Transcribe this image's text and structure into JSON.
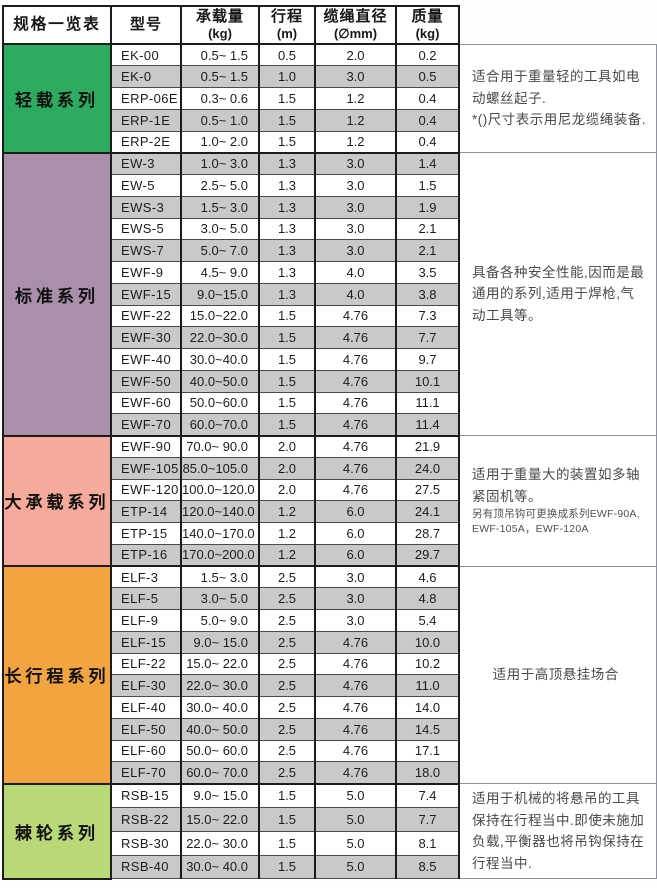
{
  "table": {
    "title": "规格一览表",
    "columns": [
      {
        "label": "型号",
        "sub": ""
      },
      {
        "label": "承载量",
        "sub": "(kg)"
      },
      {
        "label": "行程",
        "sub": "(m)"
      },
      {
        "label": "缆绳直径",
        "sub": "(∅mm)"
      },
      {
        "label": "质量",
        "sub": "(kg)"
      }
    ]
  },
  "stripe_color": "#c9c9c9",
  "groups": [
    {
      "series": "轻载系列",
      "color": "#2dab60",
      "note": {
        "main": "适合用于重量轻的工具如电动螺丝起子.",
        "extra": "*()尺寸表示用尼龙缆绳装备.",
        "align": "left"
      },
      "rows": [
        [
          "EK-00",
          "0.5~ 1.5",
          "0.5",
          "2.0",
          "0.2"
        ],
        [
          "EK-0",
          "0.5~ 1.5",
          "1.0",
          "3.0",
          "0.5"
        ],
        [
          "ERP-06E",
          "0.3~ 0.6",
          "1.5",
          "1.2",
          "0.4"
        ],
        [
          "ERP-1E",
          "0.5~ 1.0",
          "1.5",
          "1.2",
          "0.4"
        ],
        [
          "ERP-2E",
          "1.0~ 2.0",
          "1.5",
          "1.2",
          "0.4"
        ]
      ]
    },
    {
      "series": "标准系列",
      "color": "#aa8fab",
      "note": {
        "main": "具备各种安全性能,因而是最通用的系列,适用于焊枪,气动工具等。",
        "align": "left"
      },
      "rows": [
        [
          "EW-3",
          "1.0~ 3.0",
          "1.3",
          "3.0",
          "1.4"
        ],
        [
          "EW-5",
          "2.5~ 5.0",
          "1.3",
          "3.0",
          "1.5"
        ],
        [
          "EWS-3",
          "1.5~ 3.0",
          "1.3",
          "3.0",
          "1.9"
        ],
        [
          "EWS-5",
          "3.0~ 5.0",
          "1.3",
          "3.0",
          "2.1"
        ],
        [
          "EWS-7",
          "5.0~ 7.0",
          "1.3",
          "3.0",
          "2.1"
        ],
        [
          "EWF-9",
          "4.5~ 9.0",
          "1.3",
          "4.0",
          "3.5"
        ],
        [
          "EWF-15",
          "9.0~15.0",
          "1.3",
          "4.0",
          "3.8"
        ],
        [
          "EWF-22",
          "15.0~22.0",
          "1.5",
          "4.76",
          "7.3"
        ],
        [
          "EWF-30",
          "22.0~30.0",
          "1.5",
          "4.76",
          "7.7"
        ],
        [
          "EWF-40",
          "30.0~40.0",
          "1.5",
          "4.76",
          "9.7"
        ],
        [
          "EWF-50",
          "40.0~50.0",
          "1.5",
          "4.76",
          "10.1"
        ],
        [
          "EWF-60",
          "50.0~60.0",
          "1.5",
          "4.76",
          "11.1"
        ],
        [
          "EWF-70",
          "60.0~70.0",
          "1.5",
          "4.76",
          "11.4"
        ]
      ]
    },
    {
      "series": "大承载系列",
      "color": "#f5aa9b",
      "note": {
        "main": "适用于重量大的装置如多轴紧固机等。",
        "small": "另有顶吊钩可更换成系列EWF-90A, EWF-105A，EWF-120A",
        "align": "left"
      },
      "rows": [
        [
          "EWF-90",
          "70.0~ 90.0",
          "2.0",
          "4.76",
          "21.9"
        ],
        [
          "EWF-105",
          "85.0~105.0",
          "2.0",
          "4.76",
          "24.0"
        ],
        [
          "EWF-120",
          "100.0~120.0",
          "2.0",
          "4.76",
          "27.5"
        ],
        [
          "ETP-14",
          "120.0~140.0",
          "1.2",
          "6.0",
          "24.1"
        ],
        [
          "ETP-15",
          "140.0~170.0",
          "1.2",
          "6.0",
          "28.7"
        ],
        [
          "ETP-16",
          "170.0~200.0",
          "1.2",
          "6.0",
          "29.7"
        ]
      ]
    },
    {
      "series": "长行程系列",
      "color": "#f1a43f",
      "note": {
        "main": "适用于高顶悬挂场合",
        "align": "center"
      },
      "rows": [
        [
          "ELF-3",
          "1.5~ 3.0",
          "2.5",
          "3.0",
          "4.6"
        ],
        [
          "ELF-5",
          "3.0~ 5.0",
          "2.5",
          "3.0",
          "4.8"
        ],
        [
          "ELF-9",
          "5.0~ 9.0",
          "2.5",
          "3.0",
          "5.4"
        ],
        [
          "ELF-15",
          "9.0~ 15.0",
          "2.5",
          "4.76",
          "10.0"
        ],
        [
          "ELF-22",
          "15.0~ 22.0",
          "2.5",
          "4.76",
          "10.2"
        ],
        [
          "ELF-30",
          "22.0~ 30.0",
          "2.5",
          "4.76",
          "11.0"
        ],
        [
          "ELF-40",
          "30.0~ 40.0",
          "2.5",
          "4.76",
          "14.0"
        ],
        [
          "ELF-50",
          "40.0~ 50.0",
          "2.5",
          "4.76",
          "14.5"
        ],
        [
          "ELF-60",
          "50.0~ 60.0",
          "2.5",
          "4.76",
          "17.1"
        ],
        [
          "ELF-70",
          "60.0~ 70.0",
          "2.5",
          "4.76",
          "18.0"
        ]
      ]
    },
    {
      "series": "棘轮系列",
      "color": "#b9d877",
      "note": {
        "main": "适用于机械的将悬吊的工具保持在行程当中.即使未施加负载,平衡器也将吊钩保持在行程当中.",
        "align": "left"
      },
      "rows": [
        [
          "RSB-15",
          "9.0~ 15.0",
          "1.5",
          "5.0",
          "7.4"
        ],
        [
          "RSB-22",
          "15.0~ 22.0",
          "1.5",
          "5.0",
          "7.7"
        ],
        [
          "RSB-30",
          "22.0~ 30.0",
          "1.5",
          "5.0",
          "8.1"
        ],
        [
          "RSB-40",
          "30.0~ 40.0",
          "1.5",
          "5.0",
          "8.5"
        ]
      ]
    }
  ]
}
